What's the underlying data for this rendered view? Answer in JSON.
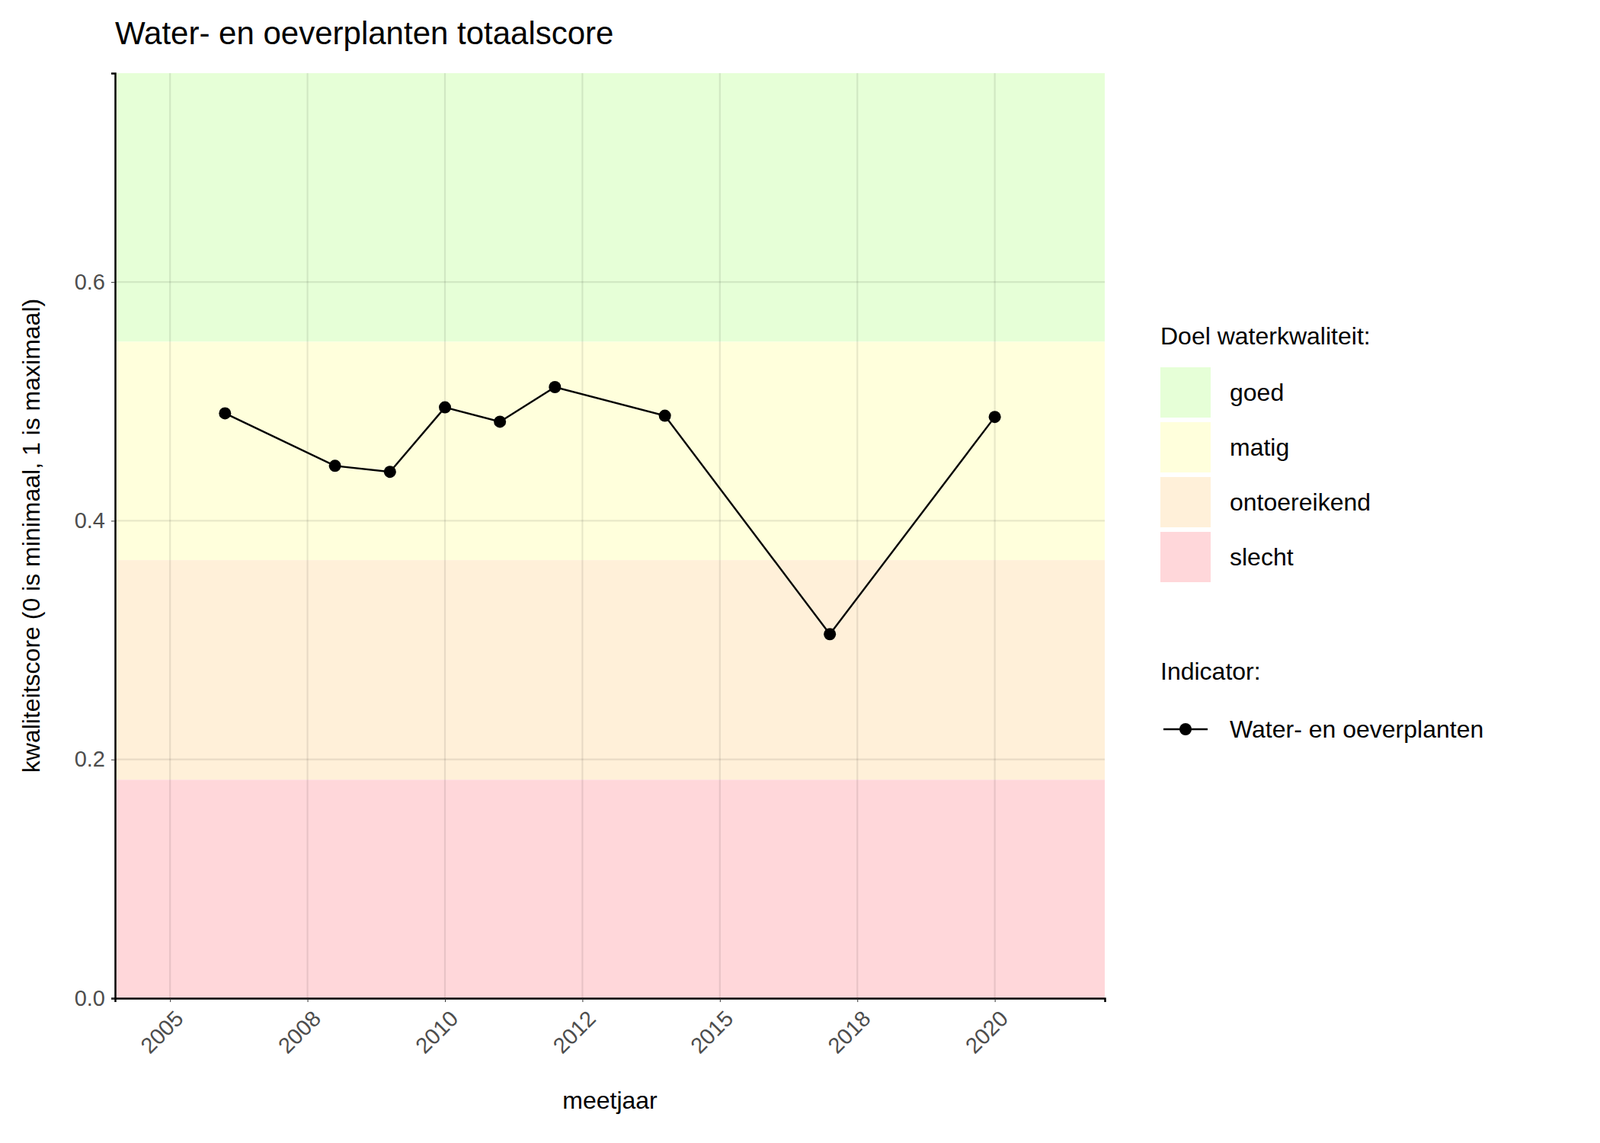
{
  "chart_data": {
    "type": "line",
    "title": "Water- en oeverplanten totaalscore",
    "x_label": "meetjaar",
    "y_label": "kwaliteitscore (0 is minimaal, 1 is maximaal)",
    "x": [
      2006,
      2008,
      2009,
      2010,
      2011,
      2012,
      2014,
      2017,
      2020
    ],
    "series": [
      {
        "name": "Water- en oeverplanten",
        "color": "#000000",
        "marker": "circle",
        "line_style": "solid",
        "values": [
          0.49,
          0.446,
          0.441,
          0.495,
          0.483,
          0.512,
          0.488,
          0.305,
          0.487
        ]
      }
    ],
    "xlim": [
      2004,
      2022
    ],
    "xticks": [
      2005,
      {
        "value": 2007.5,
        "label": "2008"
      },
      2010,
      {
        "value": 2012.5,
        "label": "2012"
      },
      2015,
      {
        "value": 2017.5,
        "label": "2018"
      },
      2020
    ],
    "ylim": [
      0,
      0.775
    ],
    "yticks": [
      {
        "value": 0,
        "label": "0.0"
      },
      0.2,
      0.4,
      0.6
    ],
    "grid": true,
    "legend": "right",
    "band_legend_title": "Doel waterkwaliteit:",
    "series_legend_title": "Indicator:",
    "bands": [
      {
        "label": "goed",
        "from": 0.55,
        "to": 0.775,
        "color": "#e6ffd7"
      },
      {
        "label": "matig",
        "from": 0.367,
        "to": 0.55,
        "color": "#ffffdc"
      },
      {
        "label": "ontoereikend",
        "from": 0.183,
        "to": 0.367,
        "color": "#fff0d9"
      },
      {
        "label": "slecht",
        "from": 0,
        "to": 0.183,
        "color": "#ffd7da"
      }
    ]
  }
}
